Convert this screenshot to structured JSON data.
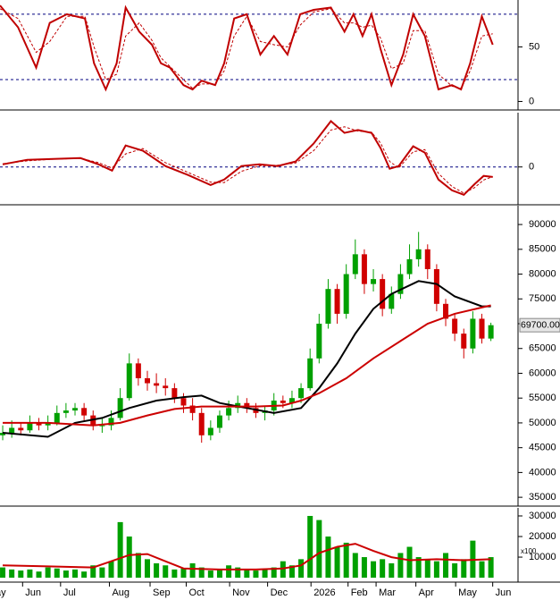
{
  "chart_data": [
    {
      "type": "line",
      "xlim": [
        -0.3,
        57
      ],
      "ylim": [
        -7,
        93
      ],
      "yticks": [
        0,
        50
      ],
      "ref_lines": [
        80,
        20
      ],
      "series": [
        {
          "color": "#c00000",
          "style": "solid",
          "x": [
            -0.3,
            1.7,
            3.7,
            5.2,
            7.1,
            9.1,
            10.1,
            11.4,
            12.6,
            13.6,
            15.1,
            16.5,
            17.5,
            18.5,
            20,
            21,
            22,
            23.5,
            24.5,
            25.6,
            27,
            28.5,
            30,
            31.5,
            32.9,
            34.4,
            36.3,
            37.8,
            38.8,
            39.8,
            40.8,
            41.8,
            43,
            44.3,
            45.4,
            46.7,
            48.2,
            49.7,
            50.7,
            51.7,
            53,
            54.2
          ],
          "values": [
            88,
            68,
            31,
            72,
            80,
            76,
            35,
            11,
            35,
            86,
            64,
            52,
            35,
            31,
            15,
            11,
            19,
            15,
            35,
            76,
            80,
            43,
            60,
            43,
            80,
            84,
            86,
            64,
            80,
            60,
            80,
            48,
            15,
            43,
            80,
            60,
            11,
            15,
            11,
            35,
            78,
            52
          ]
        },
        {
          "color": "#c00000",
          "style": "dashed",
          "x": [
            -0.3,
            1.7,
            3.7,
            5.2,
            7.1,
            9.1,
            10.1,
            11.4,
            12.6,
            13.6,
            15.1,
            16.5,
            17.5,
            18.5,
            20,
            21,
            22,
            23.5,
            24.5,
            25.6,
            27,
            28.5,
            30,
            31.5,
            32.9,
            34.4,
            36.3,
            37.8,
            38.8,
            39.8,
            40.8,
            41.8,
            43,
            44.3,
            45.4,
            46.7,
            48.2,
            49.7,
            50.7,
            51.7,
            53,
            54.2
          ],
          "values": [
            85,
            76,
            45,
            55,
            78,
            78,
            50,
            20,
            25,
            60,
            72,
            56,
            40,
            32,
            20,
            12,
            16,
            16,
            28,
            60,
            78,
            55,
            52,
            50,
            70,
            82,
            85,
            72,
            72,
            68,
            70,
            58,
            30,
            35,
            65,
            65,
            25,
            14,
            12,
            28,
            60,
            62
          ]
        }
      ]
    },
    {
      "type": "line",
      "xlim": [
        -0.3,
        57
      ],
      "ylim": [
        -1.7,
        2.5
      ],
      "yticks": [
        0
      ],
      "ref_lines": [
        0
      ],
      "series": [
        {
          "color": "#c00000",
          "style": "solid",
          "x": [
            0,
            2.7,
            5.6,
            8.6,
            10.6,
            12.1,
            13.6,
            15.5,
            18,
            20.5,
            23,
            24.5,
            26.4,
            28.4,
            30.4,
            32.4,
            34.4,
            36.3,
            37.8,
            39.3,
            40.8,
            41.8,
            42.8,
            43.8,
            45.4,
            46.7,
            48.2,
            49.7,
            51,
            52.2,
            53.2,
            54.2
          ],
          "values": [
            0.12,
            0.33,
            0.37,
            0.41,
            0.12,
            -0.17,
            0.99,
            0.75,
            0.04,
            -0.37,
            -0.83,
            -0.58,
            0.04,
            0.12,
            0.04,
            0.25,
            1.08,
            2.11,
            1.57,
            1.7,
            1.57,
            0.87,
            -0.08,
            0.04,
            0.95,
            0.66,
            -0.58,
            -1.08,
            -1.28,
            -0.79,
            -0.41,
            -0.46
          ]
        },
        {
          "color": "#c00000",
          "style": "dashed",
          "x": [
            0,
            2.7,
            5.6,
            8.6,
            10.6,
            12.1,
            13.6,
            15.5,
            18,
            20.5,
            23,
            24.5,
            26.4,
            28.4,
            30.4,
            32.4,
            34.4,
            36.3,
            37.8,
            39.3,
            40.8,
            41.8,
            42.8,
            43.8,
            45.4,
            46.7,
            48.2,
            49.7,
            51,
            52.2,
            53.2,
            54.2
          ],
          "values": [
            0.15,
            0.28,
            0.36,
            0.4,
            0.2,
            -0.05,
            0.6,
            0.85,
            0.2,
            -0.25,
            -0.7,
            -0.72,
            -0.2,
            0.05,
            0.08,
            0.18,
            0.75,
            1.7,
            1.85,
            1.65,
            1.6,
            1.1,
            0.25,
            -0.05,
            0.7,
            0.8,
            -0.3,
            -0.9,
            -1.2,
            -0.95,
            -0.6,
            -0.45
          ]
        }
      ]
    },
    {
      "type": "candlestick",
      "xlim": [
        -0.3,
        57
      ],
      "ylim": [
        33400,
        93800
      ],
      "yticks": [
        35000,
        40000,
        45000,
        50000,
        55000,
        60000,
        65000,
        70000,
        75000,
        80000,
        85000,
        90000
      ],
      "up_color": "#00a000",
      "down_color": "#d00000",
      "last_label": "69700.00",
      "x": [
        0,
        1,
        2,
        3,
        4,
        5,
        6,
        7,
        8,
        9,
        10,
        11,
        12,
        13,
        14,
        15,
        16,
        17,
        18,
        19,
        20,
        21,
        22,
        23,
        24,
        25,
        26,
        27,
        28,
        29,
        30,
        31,
        32,
        33,
        34,
        35,
        36,
        37,
        38,
        39,
        40,
        41,
        42,
        43,
        44,
        45,
        46,
        47,
        48,
        49,
        50,
        51,
        52,
        53,
        54
      ],
      "open": [
        47500,
        48000,
        49000,
        48500,
        50000,
        49500,
        50000,
        52000,
        52500,
        53000,
        51500,
        49500,
        49500,
        51000,
        55000,
        62000,
        59000,
        58000,
        57500,
        57000,
        55000,
        53500,
        52000,
        47500,
        49000,
        51500,
        53000,
        54000,
        53000,
        52000,
        52500,
        54500,
        54000,
        55000,
        57000,
        63000,
        70000,
        77000,
        72000,
        80000,
        84000,
        78000,
        79000,
        73000,
        76000,
        80000,
        83000,
        85000,
        81000,
        74000,
        71000,
        68000,
        65000,
        71000,
        67000
      ],
      "high": [
        49500,
        50500,
        50000,
        51500,
        51000,
        51500,
        53500,
        54000,
        54000,
        54000,
        52500,
        51000,
        52500,
        57000,
        64000,
        63000,
        60500,
        60000,
        59000,
        58000,
        56000,
        55000,
        53000,
        50500,
        52500,
        54500,
        55500,
        55000,
        54000,
        53500,
        56000,
        55500,
        56500,
        58000,
        65000,
        72000,
        79000,
        78000,
        82000,
        87000,
        85000,
        81000,
        80000,
        77500,
        82000,
        86000,
        88500,
        86000,
        82000,
        75000,
        72000,
        69000,
        72500,
        72000,
        70200
      ],
      "low": [
        46500,
        47000,
        47500,
        48000,
        48500,
        48500,
        49500,
        51000,
        51500,
        50500,
        48500,
        48000,
        48500,
        50500,
        54500,
        57500,
        56500,
        56000,
        55500,
        54000,
        52000,
        50500,
        46000,
        46500,
        48000,
        50500,
        52000,
        52000,
        51000,
        50500,
        51500,
        53000,
        53000,
        54000,
        56500,
        62000,
        69000,
        70000,
        71000,
        79000,
        76000,
        76500,
        71500,
        72000,
        75000,
        79000,
        81500,
        79000,
        72500,
        69500,
        66500,
        63000,
        64000,
        66000,
        66500
      ],
      "close": [
        48000,
        49000,
        48500,
        50000,
        49500,
        50000,
        52000,
        52500,
        53000,
        51500,
        49500,
        49500,
        51000,
        55000,
        62000,
        59000,
        58000,
        57500,
        57000,
        55000,
        53500,
        52000,
        47500,
        49000,
        51500,
        53000,
        54000,
        53000,
        52000,
        52500,
        54500,
        54000,
        55000,
        57000,
        63000,
        70000,
        77000,
        72000,
        80000,
        84000,
        78000,
        79000,
        73000,
        76000,
        80000,
        83000,
        85000,
        81000,
        74000,
        71000,
        68000,
        65000,
        71000,
        67000,
        69700
      ],
      "series": [
        {
          "color": "#000000",
          "x": [
            0,
            5,
            8,
            11,
            14,
            17,
            20,
            22,
            24,
            27,
            30,
            33,
            35,
            37,
            39,
            41,
            43,
            46,
            48,
            50,
            53,
            54
          ],
          "values": [
            48000,
            47200,
            50000,
            51000,
            53000,
            54500,
            55200,
            55500,
            54000,
            53000,
            52000,
            53000,
            57000,
            62000,
            68000,
            73000,
            76000,
            78600,
            78000,
            75500,
            73500,
            73500
          ]
        },
        {
          "color": "#cc0000",
          "x": [
            0,
            5,
            10,
            13,
            16,
            19,
            22,
            25,
            28,
            31,
            33,
            35,
            38,
            41,
            44,
            47,
            50,
            54
          ],
          "values": [
            50000,
            50000,
            49500,
            50000,
            51500,
            52800,
            53300,
            53300,
            53300,
            53500,
            54500,
            56000,
            59000,
            63000,
            66500,
            70000,
            72000,
            73700
          ]
        }
      ]
    },
    {
      "type": "bar",
      "xlim": [
        -0.3,
        57
      ],
      "ylim": [
        -1700,
        33900
      ],
      "yticks": [
        10000,
        20000,
        30000
      ],
      "unit_label": "x100",
      "color": "#00a000",
      "x": [
        0,
        1,
        2,
        3,
        4,
        5,
        6,
        7,
        8,
        9,
        10,
        11,
        12,
        13,
        14,
        15,
        16,
        17,
        18,
        19,
        20,
        21,
        22,
        23,
        24,
        25,
        26,
        27,
        28,
        29,
        30,
        31,
        32,
        33,
        34,
        35,
        36,
        37,
        38,
        39,
        40,
        41,
        42,
        43,
        44,
        45,
        46,
        47,
        48,
        49,
        50,
        51,
        52,
        53,
        54
      ],
      "values": [
        5000,
        4000,
        3500,
        4000,
        3000,
        5000,
        4500,
        3500,
        4000,
        3000,
        6000,
        5000,
        8000,
        27000,
        20000,
        12000,
        9000,
        7000,
        6000,
        4000,
        4500,
        7000,
        5000,
        3500,
        4000,
        6000,
        5000,
        4000,
        3500,
        4000,
        5000,
        8000,
        6000,
        9000,
        30000,
        28000,
        20000,
        15000,
        17000,
        12000,
        10000,
        8000,
        9000,
        7000,
        12000,
        15000,
        10000,
        9000,
        8000,
        12000,
        7000,
        9000,
        18000,
        8000,
        10000
      ],
      "series": [
        {
          "color": "#cc0000",
          "x": [
            0,
            5,
            10,
            12,
            14,
            16,
            18,
            20,
            24,
            28,
            31,
            33,
            35,
            37,
            39,
            41,
            43,
            45,
            48,
            51,
            54
          ],
          "values": [
            6000,
            5500,
            5000,
            8000,
            11000,
            11500,
            8000,
            4500,
            4000,
            4000,
            4500,
            6000,
            12000,
            15000,
            16500,
            13000,
            10000,
            8500,
            9000,
            8500,
            9000
          ]
        }
      ],
      "xticks": [
        {
          "value": -2,
          "label": "May"
        },
        {
          "value": 2.2,
          "label": "Jun"
        },
        {
          "value": 6.4,
          "label": "Jul"
        },
        {
          "value": 11.8,
          "label": "Aug"
        },
        {
          "value": 16.3,
          "label": "Sep"
        },
        {
          "value": 20.3,
          "label": "Oct"
        },
        {
          "value": 25.1,
          "label": "Nov"
        },
        {
          "value": 29.3,
          "label": "Dec"
        },
        {
          "value": 34.1,
          "label": "2026"
        },
        {
          "value": 38.2,
          "label": "Feb"
        },
        {
          "value": 41.3,
          "label": "Mar"
        },
        {
          "value": 45.7,
          "label": "Apr"
        },
        {
          "value": 50.1,
          "label": "May"
        },
        {
          "value": 54.2,
          "label": "Jun"
        }
      ]
    }
  ]
}
